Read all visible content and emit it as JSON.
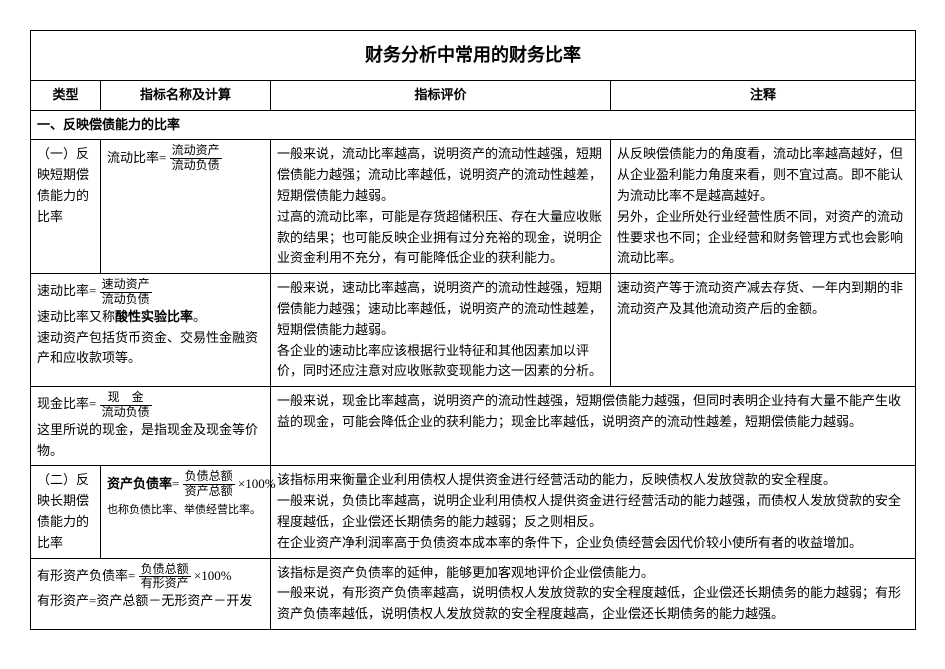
{
  "title": "财务分析中常用的财务比率",
  "headers": {
    "type": "类型",
    "formula": "指标名称及计算",
    "eval": "指标评价",
    "note": "注释"
  },
  "section1": "一、反映偿债能力的比率",
  "r1": {
    "type": "（一）反映短期偿债能力的比率",
    "name": "流动比率",
    "num": "流动资产",
    "den": "流动负债",
    "eval": "一般来说，流动比率越高，说明资产的流动性越强，短期偿债能力越强；流动比率越低，说明资产的流动性越差，短期偿债能力越弱。\n过高的流动比率，可能是存货超储积压、存在大量应收账款的结果；也可能反映企业拥有过分充裕的现金，说明企业资金利用不充分，有可能降低企业的获利能力。",
    "note": "从反映偿债能力的角度看，流动比率越高越好，但从企业盈利能力角度来看，则不宜过高。即不能认为流动比率不是越高越好。\n另外，企业所处行业经营性质不同，对资产的流动性要求也不同；企业经营和财务管理方式也会影响流动比率。"
  },
  "r2": {
    "name_line1": "速动比率",
    "num": "速动资产",
    "den": "流动负债",
    "line2": "速动比率又称",
    "line2_bold": "酸性实验比率",
    "line3": "速动资产包括货币资金、交易性金融资产和应收款项等。",
    "eval": "一般来说，速动比率越高，说明资产的流动性越强，短期偿债能力越强；速动比率越低，说明资产的流动性越差，短期偿债能力越弱。\n各企业的速动比率应该根据行业特征和其他因素加以评价，同时还应注意对应收账款变现能力这一因素的分析。",
    "note": "速动资产等于流动资产减去存货、一年内到期的非流动资产及其他流动资产后的金额。"
  },
  "r3": {
    "name": "现金比率",
    "num": "现　金",
    "den": "流动负债",
    "line2": "这里所说的现金，是指现金及现金等价物。",
    "eval": "一般来说，现金比率越高，说明资产的流动性越强，短期偿债能力越强，但同时表明企业持有大量不能产生收益的现金，可能会降低企业的获利能力；现金比率越低，说明资产的流动性越差，短期偿债能力越弱。"
  },
  "r4": {
    "type": "（二）反映长期偿债能力的比率",
    "name": "资产负债率",
    "num": "负债总额",
    "den": "资产总额",
    "pct": "×100%",
    "small": "也称负债比率、举债经营比率。",
    "eval": "该指标用来衡量企业利用债权人提供资金进行经营活动的能力，反映债权人发放贷款的安全程度。\n一般来说，负债比率越高，说明企业利用债权人提供资金进行经营活动的能力越强，而债权人发放贷款的安全程度越低，企业偿还长期债务的能力越弱；反之则相反。\n在企业资产净利润率高于负债资本成本率的条件下，企业负债经营会因代价较小使所有者的收益增加。"
  },
  "r5": {
    "name": "有形资产负债率",
    "num": "负债总额",
    "den": "有形资产",
    "pct": "×100%",
    "line2": "有形资产=资产总额－无形资产－开发",
    "eval": "该指标是资产负债率的延伸，能够更加客观地评价企业偿债能力。\n一般来说，有形资产负债率越高，说明债权人发放贷款的安全程度越低，企业偿还长期债务的能力越弱；有形资产负债率越低，说明债权人发放贷款的安全程度越高，企业偿还长期债务的能力越强。"
  }
}
